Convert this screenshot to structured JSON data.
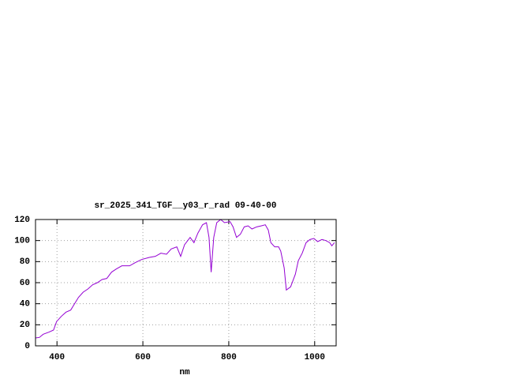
{
  "chart_data": {
    "type": "line",
    "title": "sr_2025_341_TGF__y03_r_rad 09-40-00",
    "x_label": "nm",
    "xlim": [
      350,
      1050
    ],
    "xticks": [
      400,
      600,
      800,
      1000
    ],
    "ylim": [
      0,
      120
    ],
    "yticks": [
      0,
      20,
      40,
      60,
      80,
      100,
      120
    ],
    "grid": true,
    "series": [
      {
        "color": "#9400d3",
        "x": [
          350,
          359,
          368,
          381,
          392,
          399,
          410,
          421,
          432,
          441,
          450,
          461,
          472,
          483,
          494,
          505,
          516,
          527,
          538,
          551,
          569,
          582,
          597,
          615,
          629,
          642,
          655,
          666,
          679,
          688,
          697,
          710,
          719,
          728,
          739,
          748,
          754,
          759,
          765,
          772,
          781,
          790,
          803,
          810,
          818,
          827,
          836,
          845,
          854,
          865,
          876,
          885,
          892,
          898,
          907,
          916,
          921,
          929,
          934,
          944,
          955,
          962,
          971,
          980,
          989,
          998,
          1007,
          1017,
          1026,
          1035,
          1040,
          1046
        ],
        "values": [
          7.5,
          8,
          11,
          13,
          15,
          23,
          28,
          32,
          34,
          40,
          46,
          51,
          54,
          58,
          60,
          63,
          64,
          70,
          73,
          76,
          76,
          79,
          82,
          84,
          85,
          88,
          87,
          92,
          94,
          85,
          96,
          103,
          98,
          107,
          115,
          117,
          103,
          70,
          103,
          117,
          120,
          117,
          118,
          113,
          103,
          106,
          113,
          114,
          111,
          113,
          114,
          115,
          110,
          98,
          94,
          94,
          90,
          74,
          53,
          56,
          68,
          81,
          88,
          98,
          101,
          102,
          99,
          101,
          100,
          98,
          95,
          98
        ]
      }
    ]
  }
}
